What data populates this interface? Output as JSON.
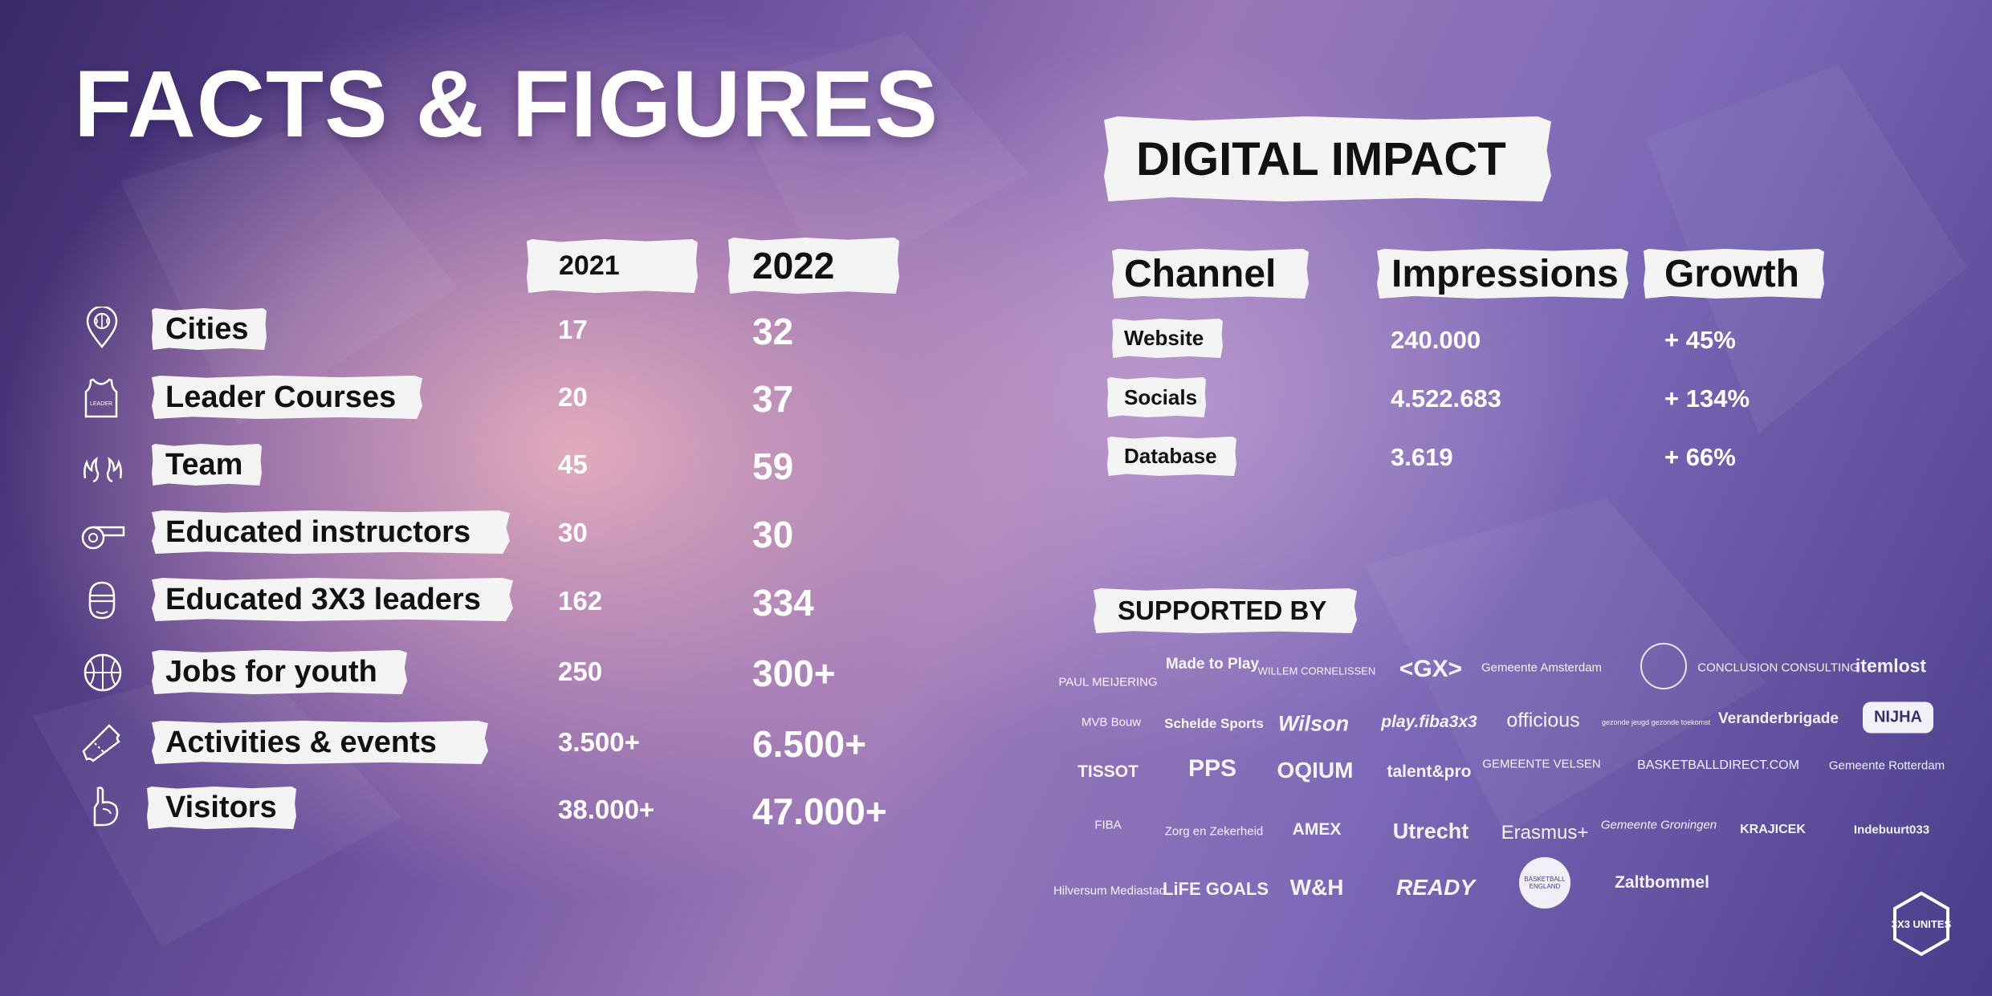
{
  "title": "FACTS & FIGURES",
  "years": {
    "y2021": "2021",
    "y2022": "2022"
  },
  "facts": [
    {
      "icon": "map-pin-icon",
      "label": "Cities",
      "v2021": "17",
      "v2022": "32"
    },
    {
      "icon": "leader-shirt-icon",
      "label": "Leader Courses",
      "v2021": "20",
      "v2022": "37"
    },
    {
      "icon": "hands-icon",
      "label": "Team",
      "v2021": "45",
      "v2022": "59"
    },
    {
      "icon": "whistle-icon",
      "label": "Educated instructors",
      "v2021": "30",
      "v2022": "30"
    },
    {
      "icon": "leader-face-icon",
      "label": "Educated 3X3 leaders",
      "v2021": "162",
      "v2022": "334"
    },
    {
      "icon": "basketball-icon",
      "label": "Jobs for youth",
      "v2021": "250",
      "v2022": "300+"
    },
    {
      "icon": "ticket-icon",
      "label": "Activities & events",
      "v2021": "3.500+",
      "v2022": "6.500+"
    },
    {
      "icon": "foam-finger-icon",
      "label": "Visitors",
      "v2021": "38.000+",
      "v2022": "47.000+"
    }
  ],
  "shirt_text": "LEADER",
  "digital": {
    "title": "DIGITAL IMPACT",
    "headers": {
      "channel": "Channel",
      "impressions": "Impressions",
      "growth": "Growth"
    },
    "rows": [
      {
        "channel": "Website",
        "impressions": "240.000",
        "growth": "+ 45%"
      },
      {
        "channel": "Socials",
        "impressions": "4.522.683",
        "growth": "+ 134%"
      },
      {
        "channel": "Database",
        "impressions": "3.619",
        "growth": "+ 66%"
      }
    ]
  },
  "supported_by": "SUPPORTED BY",
  "sponsors": [
    "PAUL MEIJERING",
    "Made to Play",
    "WILLEM CORNELISSEN",
    "<GX>",
    "Gemeente Amsterdam",
    "CONCLUSION CONSULTING",
    "itemlost",
    "MVB Bouw",
    "Schelde Sports",
    "Wilson",
    "play.fiba3x3",
    "officious",
    "gezonde jeugd gezonde toekomst",
    "Veranderbrigade",
    "NIJHA",
    "TISSOT",
    "PPS",
    "OQIUM",
    "talent&pro",
    "GEMEENTE VELSEN",
    "BASKETBALLDIRECT.COM",
    "Gemeente Rotterdam",
    "FIBA",
    "Zorg en Zekerheid",
    "AMEX",
    "Utrecht",
    "Erasmus+",
    "Gemeente Groningen",
    "KRAJICEK",
    "Indebuurt033",
    "Hilversum Mediastad",
    "LiFE GOALS",
    "W&H",
    "READY",
    "BASKETBALL ENGLAND",
    "Zaltbommel"
  ],
  "brand": "3X3 UNITES"
}
